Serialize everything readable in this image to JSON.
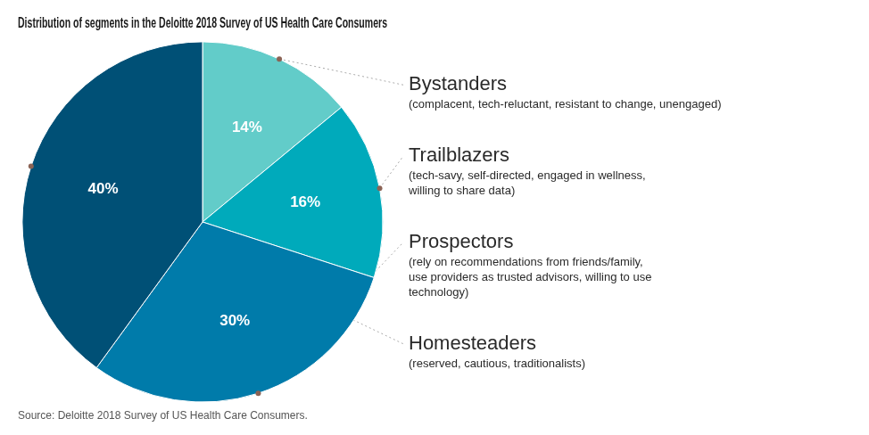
{
  "chart_data": {
    "type": "pie",
    "title": "Distribution of segments in the Deloitte 2018 Survey of US Health Care Consumers",
    "source": "Source: Deloitte 2018 Survey of US Health Care Consumers.",
    "categories": [
      "Bystanders",
      "Trailblazers",
      "Prospectors",
      "Homesteaders"
    ],
    "values": [
      14,
      16,
      30,
      40
    ],
    "value_labels": [
      "14%",
      "16%",
      "30%",
      "40%"
    ],
    "data_labels": true,
    "colors": [
      "#62ccc9",
      "#00aabb",
      "#007baa",
      "#005076"
    ],
    "annotations": [
      [
        "(complacent, tech-reluctant, resistant to change, unengaged)"
      ],
      [
        "(tech-savy, self-directed, engaged in wellness,",
        "willing to share data)"
      ],
      [
        "(rely on recommendations from friends/family,",
        "use providers as trusted advisors, willing to use",
        "technology)"
      ],
      [
        "(reserved, cautious, traditionalists)"
      ]
    ]
  }
}
